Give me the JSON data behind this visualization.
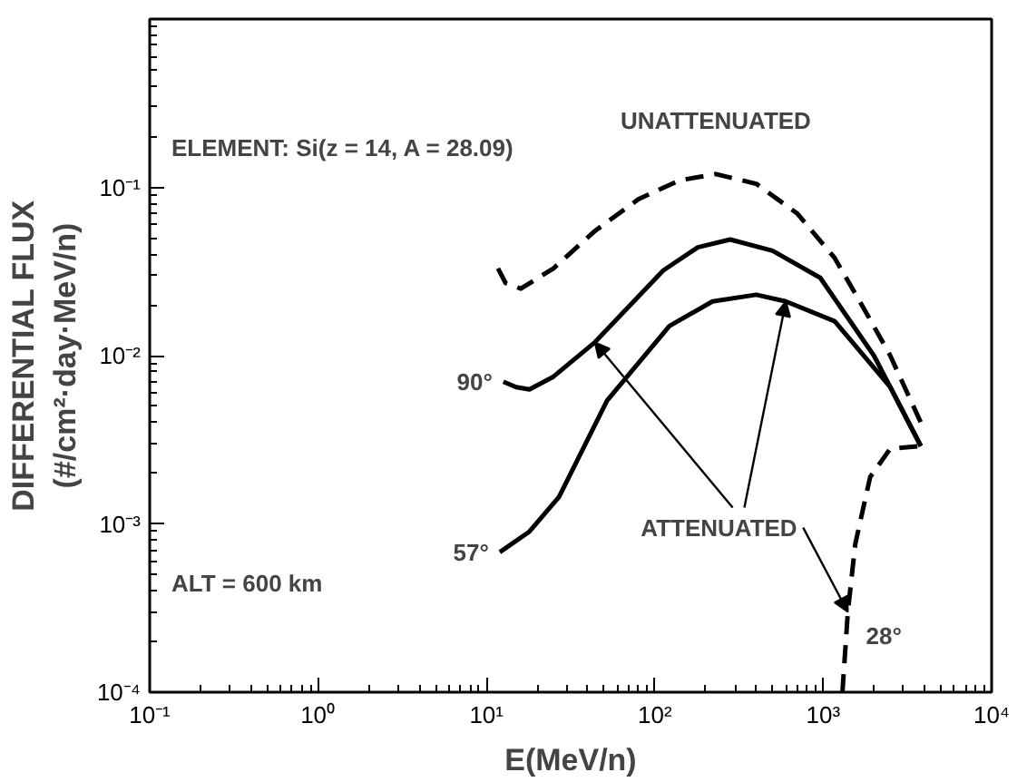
{
  "chart_data": {
    "type": "line",
    "xlabel": "E(MeV/n)",
    "ylabel": "DIFFERENTIAL FLUX\n(#/cm²·day·MeV/n)",
    "log": "xy",
    "grid": false,
    "xlim": [
      0.1,
      10000
    ],
    "xticks": [
      {
        "value": 0.1,
        "label": "10⁻¹"
      },
      {
        "value": 1,
        "label": "10⁰"
      },
      {
        "value": 10,
        "label": "10¹"
      },
      {
        "value": 100,
        "label": "10²"
      },
      {
        "value": 1000,
        "label": "10³"
      },
      {
        "value": 10000,
        "label": "10⁴"
      }
    ],
    "ylim": [
      0.0001,
      1
    ],
    "yticks": [
      {
        "value": 0.0001,
        "label": "10⁻⁴"
      },
      {
        "value": 0.001,
        "label": "10⁻³"
      },
      {
        "value": 0.01,
        "label": "10⁻²"
      },
      {
        "value": 0.1,
        "label": "10⁻¹"
      }
    ],
    "series": [
      {
        "name": "UNATTENUATED",
        "color": "#000000",
        "line_style": "dashed",
        "x": [
          11.7,
          13,
          16,
          25,
          44,
          80,
          140,
          230,
          400,
          700,
          1170,
          1800,
          2500,
          3800
        ],
        "values": [
          0.033,
          0.027,
          0.025,
          0.033,
          0.055,
          0.085,
          0.11,
          0.12,
          0.105,
          0.07,
          0.038,
          0.018,
          0.01,
          0.004
        ]
      },
      {
        "name": "90°",
        "color": "#000000",
        "line_style": "solid",
        "x": [
          12.6,
          15,
          18,
          25,
          44,
          112,
          180,
          280,
          500,
          960,
          2000,
          3800
        ],
        "values": [
          0.007,
          0.0065,
          0.0063,
          0.0075,
          0.012,
          0.032,
          0.044,
          0.049,
          0.042,
          0.029,
          0.01,
          0.0029
        ]
      },
      {
        "name": "57°",
        "color": "#000000",
        "line_style": "solid",
        "x": [
          12,
          18,
          27,
          52,
          122,
          220,
          400,
          600,
          1170,
          2500,
          3800
        ],
        "values": [
          0.00068,
          0.0009,
          0.00145,
          0.0054,
          0.015,
          0.021,
          0.023,
          0.021,
          0.016,
          0.0065,
          0.0029
        ]
      },
      {
        "name": "28°",
        "color": "#000000",
        "line_style": "dashed",
        "x": [
          1300,
          1400,
          1550,
          1900,
          2500,
          3800
        ],
        "values": [
          0.0001,
          0.0003,
          0.00076,
          0.0019,
          0.0028,
          0.0029
        ]
      }
    ],
    "annotations": [
      "ELEMENT: Si(z = 14, A = 28.09)",
      "ALT = 600 km",
      {
        "text": "ATTENUATED",
        "x": 44,
        "y": 0.012
      }
    ]
  }
}
